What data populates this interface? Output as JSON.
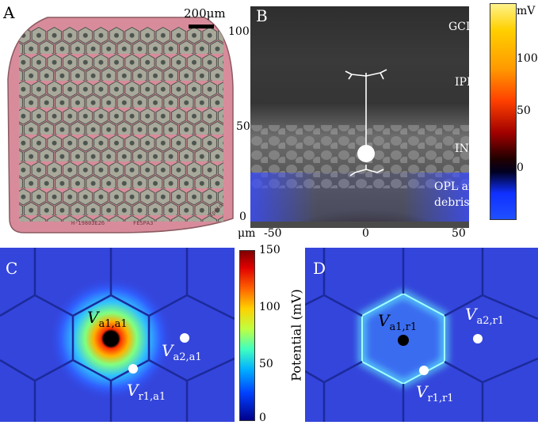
{
  "panels": {
    "A": {
      "label": "A",
      "scale_bar": "200μm",
      "chip_text": [
        "FESPA3",
        "H-19803E26",
        "Ipdio"
      ]
    },
    "B": {
      "label": "B",
      "y_ticks": [
        "100",
        "50",
        "0"
      ],
      "x_unit": "μm",
      "x_ticks": [
        "-50",
        "0",
        "50"
      ],
      "layers": [
        "GCL",
        "IPL",
        "INL",
        "OPL and",
        "debris"
      ],
      "colorbar_unit": "mV",
      "colorbar_ticks": [
        "100",
        "50",
        "0"
      ]
    },
    "C": {
      "label": "C",
      "v_active": {
        "main": "V",
        "sub": "a1,a1"
      },
      "v_a2": {
        "main": "V",
        "sub": "a2,a1"
      },
      "v_r1": {
        "main": "V",
        "sub": "r1,a1"
      },
      "colorbar_ticks": [
        "150",
        "100",
        "50",
        "0"
      ],
      "colorbar_label": "Potential (mV)"
    },
    "D": {
      "label": "D",
      "v_active": {
        "main": "V",
        "sub": "a1,r1"
      },
      "v_a2": {
        "main": "V",
        "sub": "a2,r1"
      },
      "v_r1": {
        "main": "V",
        "sub": "r1,r1"
      }
    }
  },
  "colors": {
    "chip_pink": "#d98c9c",
    "hex_fill": "#a8a79a",
    "field_blue": "#2f3bd6"
  }
}
